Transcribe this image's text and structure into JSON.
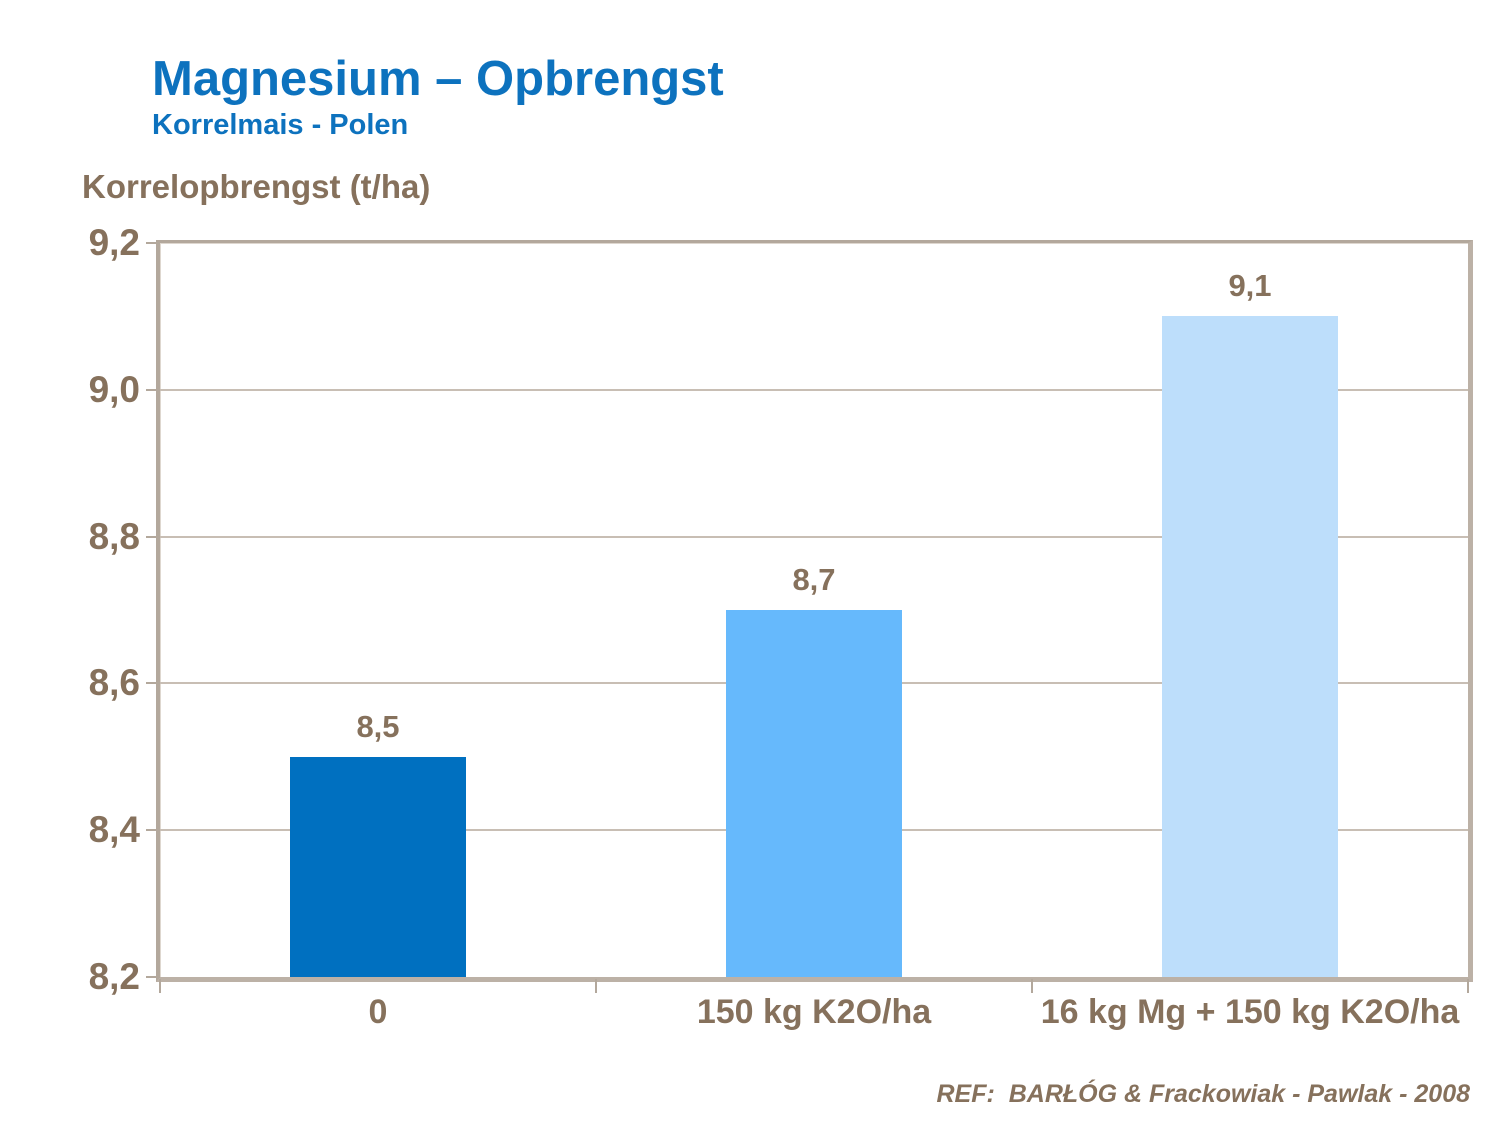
{
  "header": {
    "title": "Magnesium – Opbrengst",
    "subtitle": "Korrelmais  - Polen"
  },
  "footer": {
    "reference": "REF:  BARŁÓG & Frackowiak - Pawlak - 2008"
  },
  "colors": {
    "title_blue": "#0d72be",
    "text_brown": "#86715c",
    "axis_frame_tan": "#bcb1a6",
    "gridline": "#c8beb4"
  },
  "chart_data": {
    "type": "bar",
    "title": "Magnesium – Opbrengst",
    "subtitle": "Korrelmais - Polen",
    "ylabel": "Korrelopbrengst (t/ha)",
    "xlabel": "",
    "categories": [
      "0",
      "150 kg K2O/ha",
      "16 kg Mg + 150 kg K2O/ha"
    ],
    "values": [
      8.5,
      8.7,
      9.1
    ],
    "value_labels": [
      "8,5",
      "8,7",
      "9,1"
    ],
    "bar_colors": [
      "#0070c0",
      "#66b9fc",
      "#bddefb"
    ],
    "ylim": [
      8.2,
      9.2
    ],
    "ytick_step": 0.2,
    "ytick_labels": [
      "8,2",
      "8,4",
      "8,6",
      "8,8",
      "9,0",
      "9,2"
    ],
    "grid": true,
    "legend_position": "none",
    "annotations": [
      "REF:  BARŁÓG & Frackowiak - Pawlak - 2008"
    ]
  }
}
